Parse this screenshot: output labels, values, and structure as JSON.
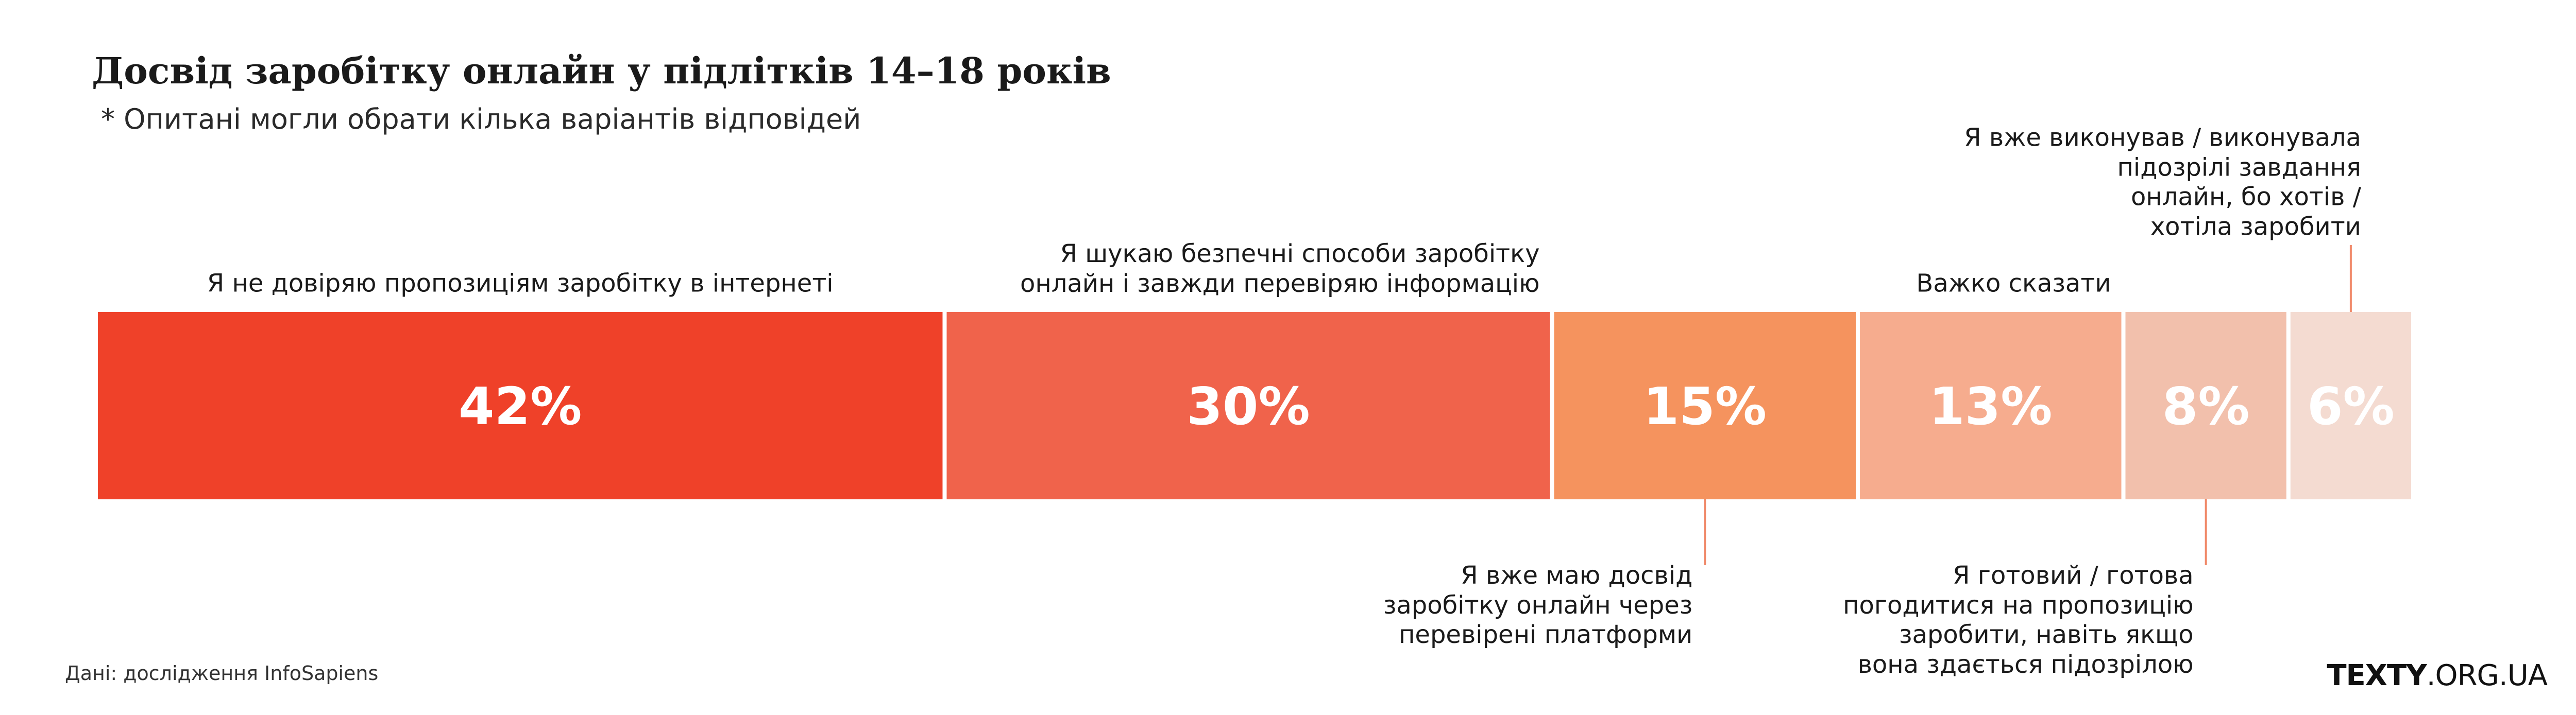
{
  "chart_data": {
    "type": "bar",
    "orientation": "horizontal-stacked-100",
    "title": "Досвід заробітку онлайн у підлітків 14–18 років",
    "subtitle": "* Опитані могли обрати кілька варіантів відповідей",
    "categories": [
      "Я не довіряю пропозиціям заробітку в інтернеті",
      "Я шукаю безпечні способи заробітку онлайн і завжди перевіряю інформацію",
      "Я вже маю досвід заробітку онлайн через перевірені платформи",
      "Важко сказати",
      "Я готовий / готова погодитися на пропозицію заробити, навіть якщо вона здається підозрілою",
      "Я вже виконував / виконувала підозрілі завдання онлайн, бо хотів / хотіла заробити"
    ],
    "values": [
      42,
      30,
      15,
      13,
      8,
      6
    ],
    "value_labels": [
      "42%",
      "30%",
      "15%",
      "13%",
      "8%",
      "6%"
    ],
    "colors": [
      "#ef4129",
      "#f0634b",
      "#f5935e",
      "#f6ac8e",
      "#f2c0ac",
      "#f4dbd1"
    ],
    "label_lines": [
      [
        "Я не довіряю пропозиціям заробітку в інтернеті"
      ],
      [
        "Я шукаю безпечні способи заробітку",
        "онлайн і завжди перевіряю інформацію"
      ],
      [
        "Я вже маю досвід",
        "заробітку онлайн через",
        "перевірені платформи"
      ],
      [
        "Важко сказати"
      ],
      [
        "Я готовий / готова",
        "погодитися на пропозицію",
        "заробити, навіть якщо",
        "вона здається підозрілою"
      ],
      [
        "Я вже виконував / виконувала",
        "підозрілі завдання",
        "онлайн, бо хотів /",
        "хотіла заробити"
      ]
    ],
    "label_positions": [
      "above",
      "above",
      "below",
      "above",
      "below",
      "above"
    ],
    "connector_color": "#f08a6a",
    "xlabel": "",
    "ylabel": "",
    "unit": "%"
  },
  "source": "Дані: дослідження InfoSapiens",
  "brand": {
    "strong": "TEXTY",
    "rest": ".ORG.UA"
  }
}
